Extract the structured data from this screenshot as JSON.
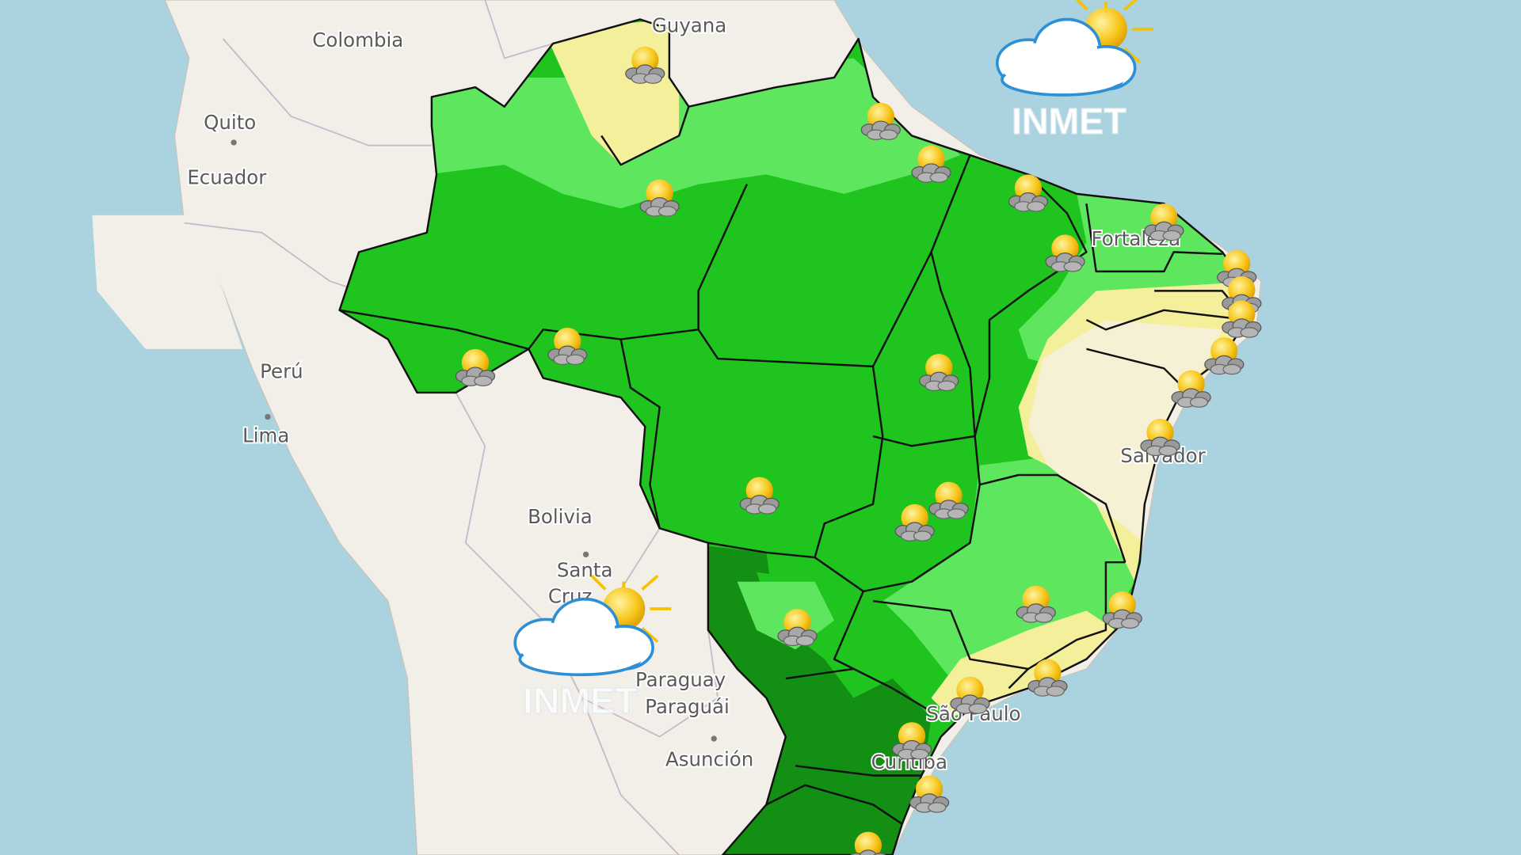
{
  "map_labels": [
    "Colombia",
    "Guyana",
    "Quito",
    "Ecuador",
    "Perú",
    "Lima",
    "Bolivia",
    "Santa",
    "Cruz",
    "Paraguay",
    "Paraguái",
    "Asunción",
    "Salvador",
    "São Paulo",
    "Curitiba",
    "Fortaleza"
  ],
  "logos": [
    "INMET",
    "INMET"
  ]
}
